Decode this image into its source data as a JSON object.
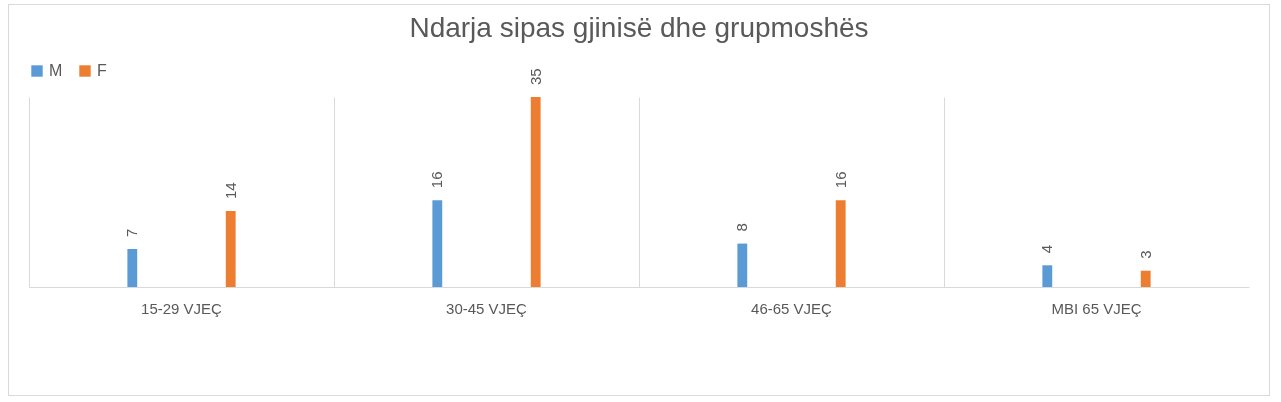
{
  "chart_data": {
    "type": "bar",
    "title": "Ndarja sipas gjinisë dhe grupmoshës",
    "categories": [
      "15-29 VJEÇ",
      "30-45 VJEÇ",
      "46-65 VJEÇ",
      "MBI 65 VJEÇ"
    ],
    "series": [
      {
        "name": "M",
        "color": "#5b9bd5",
        "values": [
          7,
          16,
          8,
          4
        ]
      },
      {
        "name": "F",
        "color": "#ed7d31",
        "values": [
          14,
          35,
          16,
          3
        ]
      }
    ],
    "data_labels": true,
    "grid": "x",
    "legend": "top"
  }
}
